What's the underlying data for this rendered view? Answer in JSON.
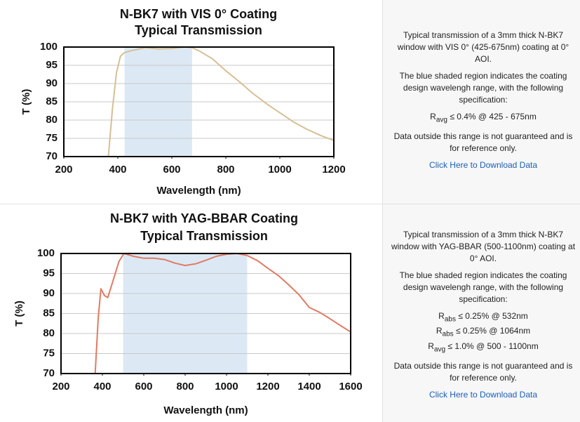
{
  "chart_data": [
    {
      "type": "line",
      "title": "N-BK7 with VIS 0° Coating",
      "subtitle": "Typical Transmission",
      "x_label": "Wavelength (nm)",
      "y_label": "T (%)",
      "x": [
        365,
        380,
        395,
        410,
        425,
        450,
        500,
        550,
        600,
        650,
        675,
        700,
        750,
        800,
        850,
        900,
        950,
        1000,
        1050,
        1100,
        1150,
        1200
      ],
      "values": [
        70,
        83,
        93,
        97.5,
        98.5,
        99,
        99.8,
        99.5,
        99.6,
        100,
        99.8,
        99,
        96.8,
        93.5,
        90.5,
        87.3,
        84.5,
        82,
        79.5,
        77.5,
        75.8,
        74.4
      ],
      "color": "#d6bf95",
      "shaded_range": [
        425,
        675
      ],
      "shade_color": "#dce9f5",
      "xlim": [
        200,
        1200
      ],
      "xticks": [
        200,
        400,
        600,
        800,
        1000,
        1200
      ],
      "ylim": [
        70,
        100
      ],
      "yticks": [
        70,
        75,
        80,
        85,
        90,
        95,
        100
      ],
      "grid": true
    },
    {
      "type": "line",
      "title": "N-BK7 with YAG-BBAR Coating",
      "subtitle": "Typical Transmission",
      "x_label": "Wavelength (nm)",
      "y_label": "T (%)",
      "x": [
        365,
        380,
        393,
        410,
        426,
        450,
        480,
        504,
        550,
        600,
        650,
        700,
        750,
        800,
        850,
        900,
        950,
        1000,
        1050,
        1100,
        1150,
        1200,
        1250,
        1300,
        1350,
        1400,
        1450,
        1500,
        1550,
        1600
      ],
      "values": [
        70,
        84,
        91.2,
        89.5,
        89,
        93,
        98,
        100,
        99.3,
        98.8,
        98.8,
        98.5,
        97.6,
        97,
        97.4,
        98.3,
        99.3,
        99.8,
        100,
        99.5,
        98.2,
        96.3,
        94.5,
        92.2,
        89.7,
        86.5,
        85.3,
        83.7,
        82,
        80.4
      ],
      "color": "#e07b63",
      "shaded_range": [
        500,
        1100
      ],
      "shade_color": "#dce9f5",
      "xlim": [
        200,
        1600
      ],
      "xticks": [
        200,
        400,
        600,
        800,
        1000,
        1200,
        1400,
        1600
      ],
      "ylim": [
        70,
        100
      ],
      "yticks": [
        70,
        75,
        80,
        85,
        90,
        95,
        100
      ],
      "grid": true
    }
  ],
  "panels": [
    {
      "paragraphs": [
        "Typical transmission of a 3mm thick N-BK7 window with VIS 0° (425-675nm) coating at 0° AOI.",
        "The blue shaded region indicates the coating design wavelengh range, with the following specification:"
      ],
      "specs": [
        {
          "symbol": "R",
          "sub": "avg",
          "text": "≤ 0.4% @ 425 - 675nm"
        }
      ],
      "note": "Data outside this range is not guaranteed and is for reference only.",
      "link": "Click Here to Download Data"
    },
    {
      "paragraphs": [
        "Typical transmission of a 3mm thick N-BK7 window with YAG-BBAR (500-1100nm) coating at 0° AOI.",
        "The blue shaded region indicates the coating design wavelengh range, with the following specification:"
      ],
      "specs": [
        {
          "symbol": "R",
          "sub": "abs",
          "text": "≤ 0.25% @ 532nm"
        },
        {
          "symbol": "R",
          "sub": "abs",
          "text": "≤ 0.25% @ 1064nm"
        },
        {
          "symbol": "R",
          "sub": "avg",
          "text": "≤ 1.0% @ 500 - 1100nm"
        }
      ],
      "note": "Data outside this range is not guaranteed and is for reference only.",
      "link": "Click Here to Download Data"
    }
  ]
}
